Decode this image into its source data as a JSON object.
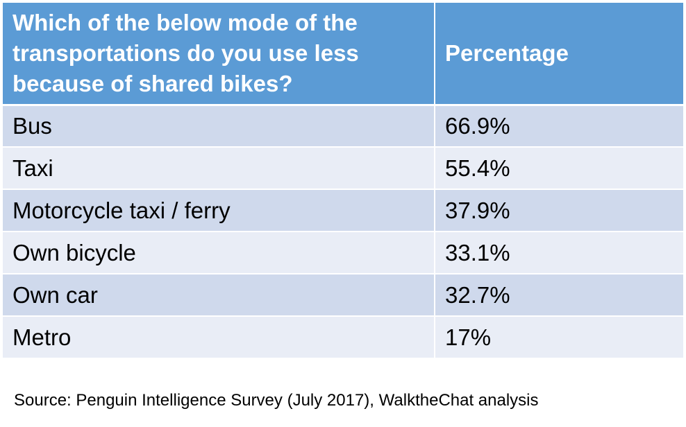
{
  "chart_data": {
    "type": "table",
    "columns": [
      "Which of the below mode of the transportations do you use less because of shared bikes?",
      "Percentage"
    ],
    "rows": [
      {
        "mode": "Bus",
        "percentage": "66.9%"
      },
      {
        "mode": "Taxi",
        "percentage": "55.4%"
      },
      {
        "mode": "Motorcycle taxi / ferry",
        "percentage": "37.9%"
      },
      {
        "mode": "Own bicycle",
        "percentage": "33.1%"
      },
      {
        "mode": "Own car",
        "percentage": "32.7%"
      },
      {
        "mode": "Metro",
        "percentage": "17%"
      }
    ],
    "values": [
      66.9,
      55.4,
      37.9,
      33.1,
      32.7,
      17
    ],
    "header_color": "#5b9bd5",
    "row_colors": [
      "#cfd9ec",
      "#e9edf6"
    ]
  },
  "source": "Source: Penguin Intelligence Survey (July 2017), WalktheChat analysis"
}
